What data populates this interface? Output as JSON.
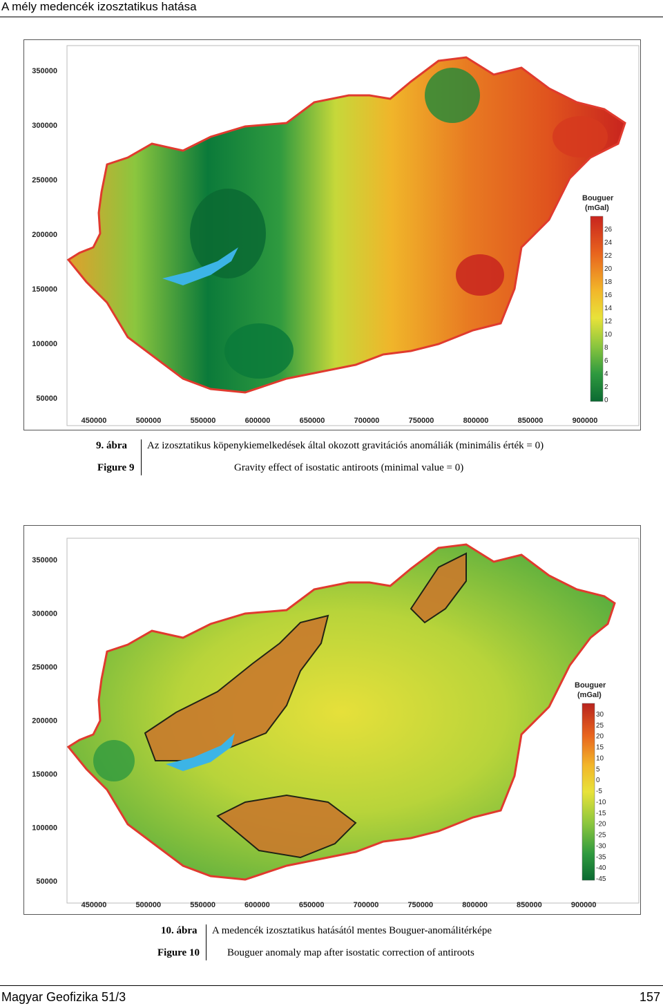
{
  "header": {
    "title": "A mély medencék izosztatikus hatása"
  },
  "footer": {
    "journal": "Magyar Geofizika 51/3",
    "page": "157"
  },
  "colors": {
    "border": "#e03a2e",
    "lake": "#3cb4e6",
    "low": "#0b7a3a",
    "mid": "#e8e23a",
    "high": "#c8241e"
  },
  "figure9": {
    "y_ticks": [
      "350000",
      "300000",
      "250000",
      "200000",
      "150000",
      "100000",
      "50000"
    ],
    "x_ticks": [
      "450000",
      "500000",
      "550000",
      "600000",
      "650000",
      "700000",
      "750000",
      "800000",
      "850000",
      "900000"
    ],
    "legend_title_1": "Bouguer",
    "legend_title_2": "(mGal)",
    "legend_labels": [
      "26",
      "24",
      "22",
      "20",
      "18",
      "16",
      "14",
      "12",
      "10",
      "8",
      "6",
      "4",
      "2",
      "0"
    ],
    "caption_hu_label": "9. ábra",
    "caption_hu_text": "Az izosztatikus köpenykiemelkedések által okozott gravitációs anomáliák (minimális érték = 0)",
    "caption_en_label": "Figure 9",
    "caption_en_text": "Gravity effect of isostatic antiroots (minimal value = 0)"
  },
  "figure10": {
    "y_ticks": [
      "350000",
      "300000",
      "250000",
      "200000",
      "150000",
      "100000",
      "50000"
    ],
    "x_ticks": [
      "450000",
      "500000",
      "550000",
      "600000",
      "650000",
      "700000",
      "750000",
      "800000",
      "850000",
      "900000"
    ],
    "legend_title_1": "Bouguer",
    "legend_title_2": "(mGal)",
    "legend_labels": [
      "30",
      "25",
      "20",
      "15",
      "10",
      "5",
      "0",
      "-5",
      "-10",
      "-15",
      "-20",
      "-25",
      "-30",
      "-35",
      "-40",
      "-45"
    ],
    "caption_hu_label": "10. ábra",
    "caption_hu_text": "A medencék izosztatikus hatásától mentes Bouguer-anomálitérképe",
    "caption_en_label": "Figure 10",
    "caption_en_text": "Bouguer anomaly map after isostatic correction of antiroots"
  }
}
